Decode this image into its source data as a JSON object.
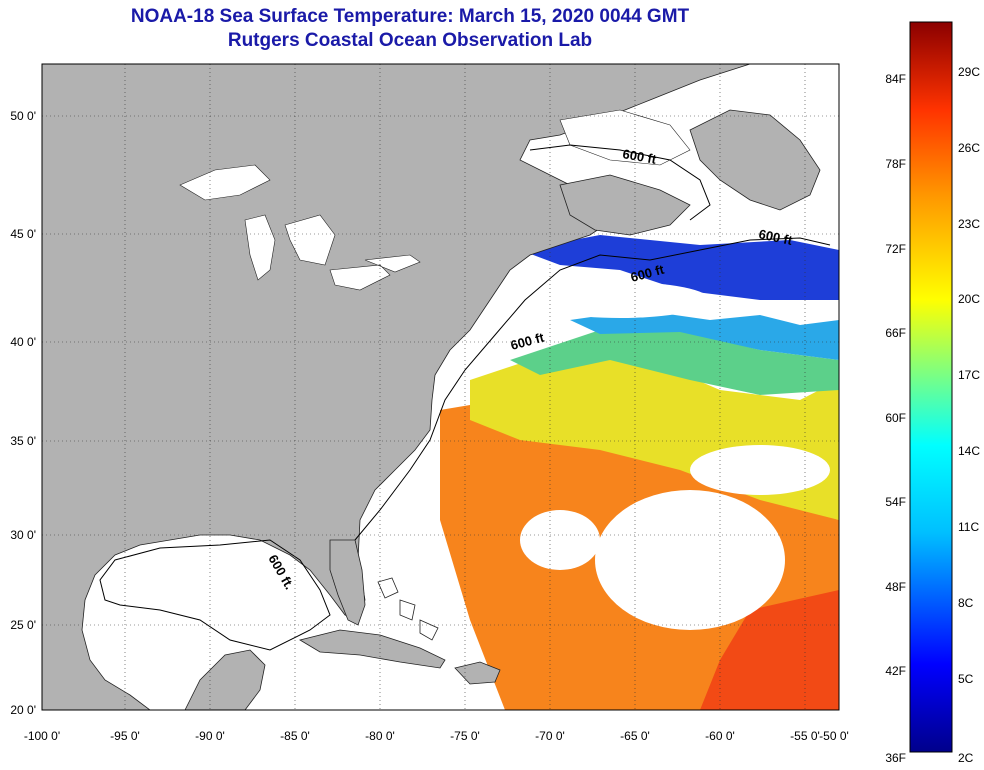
{
  "header": {
    "title": "NOAA-18 Sea Surface Temperature:  March 15, 2020 0044 GMT",
    "subtitle": "Rutgers Coastal Ocean Observation Lab"
  },
  "map": {
    "lat_labels": [
      "50 0'",
      "45 0'",
      "40 0'",
      "35 0'",
      "30 0'",
      "25 0'",
      "20 0'"
    ],
    "lon_labels": [
      "-100 0'",
      "-95 0'",
      "-90 0'",
      "-85 0'",
      "-80 0'",
      "-75 0'",
      "-70 0'",
      "-65 0'",
      "-60 0'",
      "-55 0'",
      "-50 0'"
    ],
    "contour_labels": [
      "600 ft",
      "600 ft",
      "600 ft",
      "600 ft",
      "600 ft."
    ],
    "land_color": "#b2b2b2",
    "ocean_color": "#ffffff"
  },
  "colorbar": {
    "f_labels": [
      "84F",
      "78F",
      "72F",
      "66F",
      "60F",
      "54F",
      "48F",
      "42F",
      "36F"
    ],
    "c_labels": [
      "29C",
      "26C",
      "23C",
      "20C",
      "17C",
      "14C",
      "11C",
      "8C",
      "5C",
      "2C"
    ],
    "colors": [
      "#00008b",
      "#0000ff",
      "#00bfff",
      "#00ffff",
      "#7fff7f",
      "#ffff00",
      "#ff9900",
      "#ff3300",
      "#8b0000"
    ]
  }
}
